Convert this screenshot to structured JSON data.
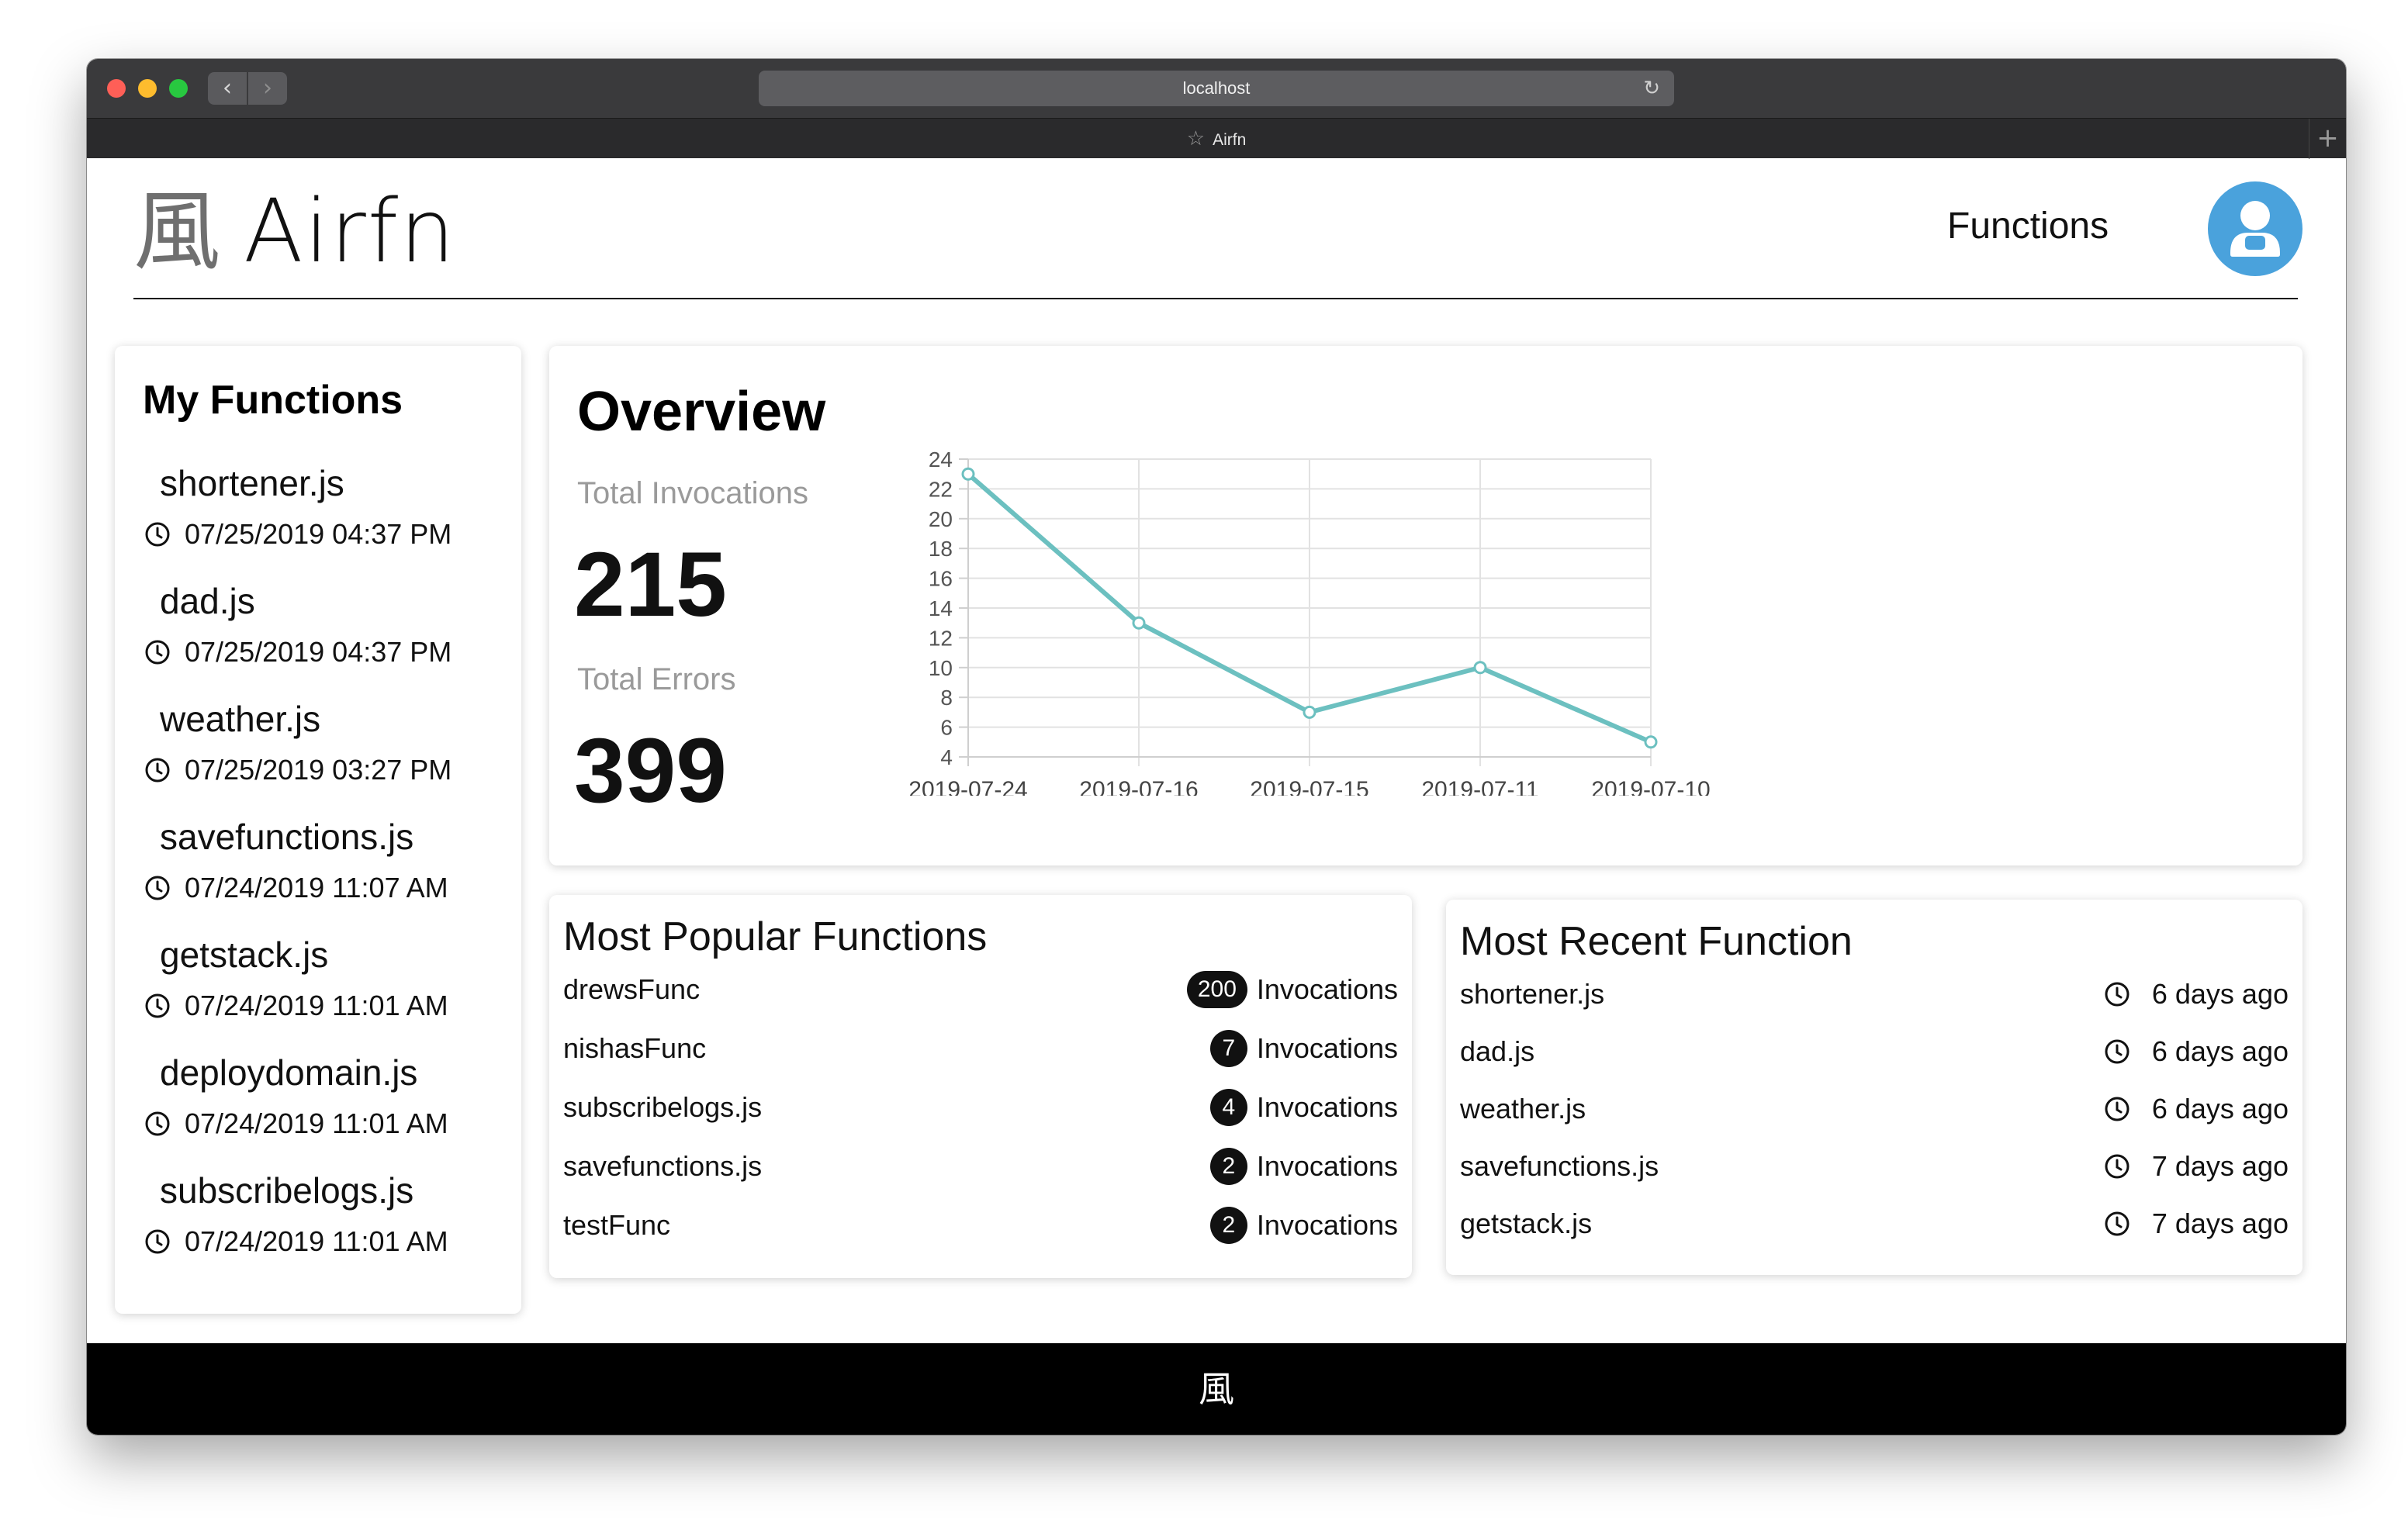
{
  "browser": {
    "url": "localhost",
    "tab_title": "Airfn",
    "back_icon": "chevron-left-icon",
    "forward_icon": "chevron-right-icon",
    "reload_icon": "reload-icon"
  },
  "header": {
    "logo_mark": "風",
    "logo_text": "Airfn",
    "nav_functions": "Functions",
    "avatar_icon": "user-icon",
    "avatar_color": "#4aa2dc"
  },
  "my_functions": {
    "title": "My Functions",
    "items": [
      {
        "name": "shortener.js",
        "time": "07/25/2019 04:37 PM"
      },
      {
        "name": "dad.js",
        "time": "07/25/2019 04:37 PM"
      },
      {
        "name": "weather.js",
        "time": "07/25/2019 03:27 PM"
      },
      {
        "name": "savefunctions.js",
        "time": "07/24/2019 11:07 AM"
      },
      {
        "name": "getstack.js",
        "time": "07/24/2019 11:01 AM"
      },
      {
        "name": "deploydomain.js",
        "time": "07/24/2019 11:01 AM"
      },
      {
        "name": "subscribelogs.js",
        "time": "07/24/2019 11:01 AM"
      }
    ]
  },
  "overview": {
    "title": "Overview",
    "total_invocations_label": "Total Invocations",
    "total_invocations": "215",
    "total_errors_label": "Total Errors",
    "total_errors": "399"
  },
  "chart_data": {
    "type": "line",
    "title": "",
    "xlabel": "",
    "ylabel": "",
    "categories": [
      "2019-07-24",
      "2019-07-16",
      "2019-07-15",
      "2019-07-11",
      "2019-07-10"
    ],
    "series": [
      {
        "values": [
          23,
          13,
          7,
          10,
          5
        ]
      }
    ],
    "ylim": [
      4,
      24
    ],
    "yticks": [
      4,
      6,
      8,
      10,
      12,
      14,
      16,
      18,
      20,
      22,
      24
    ],
    "grid": true,
    "line_color": "#6cc0c0"
  },
  "popular": {
    "title": "Most Popular Functions",
    "items": [
      {
        "name": "drewsFunc",
        "count": "200",
        "unit": "Invocations"
      },
      {
        "name": "nishasFunc",
        "count": "7",
        "unit": "Invocations"
      },
      {
        "name": "subscribelogs.js",
        "count": "4",
        "unit": "Invocations"
      },
      {
        "name": "savefunctions.js",
        "count": "2",
        "unit": "Invocations"
      },
      {
        "name": "testFunc",
        "count": "2",
        "unit": "Invocations"
      }
    ]
  },
  "recent": {
    "title": "Most Recent Function",
    "items": [
      {
        "name": "shortener.js",
        "ago": "6 days ago"
      },
      {
        "name": "dad.js",
        "ago": "6 days ago"
      },
      {
        "name": "weather.js",
        "ago": "6 days ago"
      },
      {
        "name": "savefunctions.js",
        "ago": "7 days ago"
      },
      {
        "name": "getstack.js",
        "ago": "7 days ago"
      }
    ]
  },
  "footer": {
    "logo": "風"
  }
}
